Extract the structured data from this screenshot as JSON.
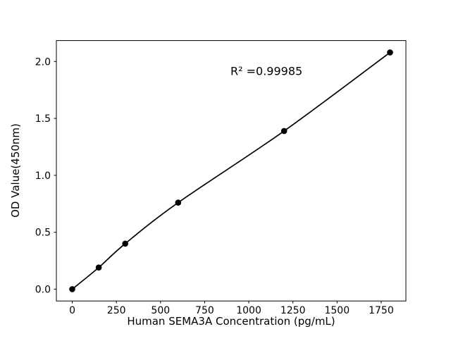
{
  "figure": {
    "background": "#ffffff"
  },
  "chart_data": {
    "type": "scatter",
    "xlabel": "Human SEMA3A Concentration (pg/mL)",
    "ylabel": "OD Value(450nm)",
    "annotation": "R² =0.99985",
    "annotation_xy": [
      1100,
      1.88
    ],
    "x": [
      0,
      150,
      300,
      600,
      1200,
      1800
    ],
    "y": [
      0.0,
      0.19,
      0.4,
      0.76,
      1.39,
      2.08
    ],
    "xticks": [
      0,
      250,
      500,
      750,
      1000,
      1250,
      1500,
      1750
    ],
    "xtick_labels": [
      "0",
      "250",
      "500",
      "750",
      "1000",
      "1250",
      "1500",
      "1750"
    ],
    "yticks": [
      0.0,
      0.5,
      1.0,
      1.5,
      2.0
    ],
    "ytick_labels": [
      "0.0",
      "0.5",
      "1.0",
      "1.5",
      "2.0"
    ],
    "xlim": [
      -90,
      1890
    ],
    "ylim": [
      -0.104,
      2.184
    ],
    "grid": false,
    "has_fit_line": true,
    "line_color": "#000000",
    "marker_color": "#000000"
  }
}
